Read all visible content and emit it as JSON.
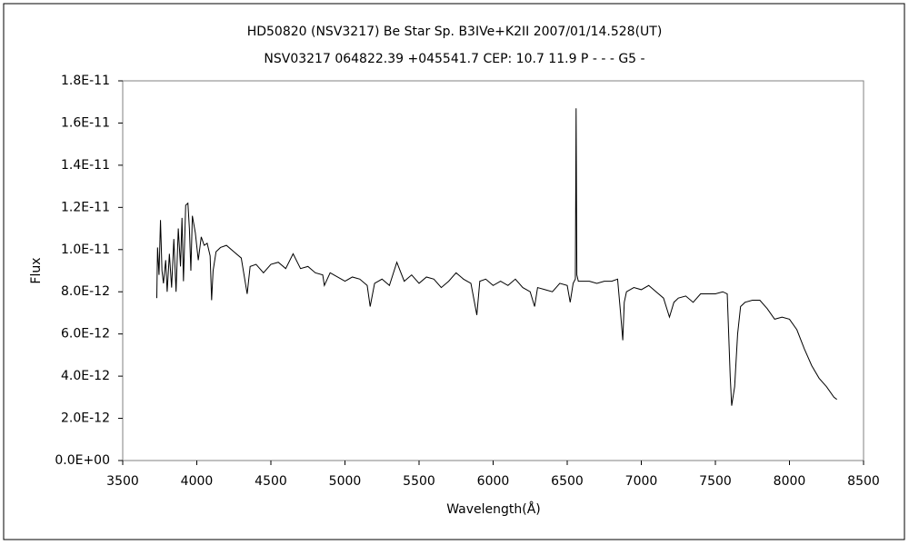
{
  "chart_data": {
    "type": "line",
    "title": "HD50820 (NSV3217)    Be Star    Sp. B3IVe+K2II    2007/01/14.528(UT)",
    "subtitle": "NSV03217 064822.39 +045541.7 CEP: 10.7 11.9  P - - - G5 -",
    "xlabel": "Wavelength(Å)",
    "ylabel": "Flux",
    "xlim": [
      3500,
      8500
    ],
    "xticks": [
      3500,
      4000,
      4500,
      5000,
      5500,
      6000,
      6500,
      7000,
      7500,
      8000,
      8500
    ],
    "ylim": [
      0,
      1.8e-11
    ],
    "yticks": [
      {
        "value": 0,
        "label": "0.0E+00"
      },
      {
        "value": 2e-12,
        "label": "2.0E-12"
      },
      {
        "value": 4e-12,
        "label": "4.0E-12"
      },
      {
        "value": 6e-12,
        "label": "6.0E-12"
      },
      {
        "value": 8e-12,
        "label": "8.0E-12"
      },
      {
        "value": 1e-11,
        "label": "1.0E-11"
      },
      {
        "value": 1.2e-11,
        "label": "1.2E-11"
      },
      {
        "value": 1.4e-11,
        "label": "1.4E-11"
      },
      {
        "value": 1.6e-11,
        "label": "1.6E-11"
      },
      {
        "value": 1.8e-11,
        "label": "1.8E-11"
      }
    ],
    "color": "#000000",
    "x": [
      3730,
      3735,
      3745,
      3755,
      3765,
      3775,
      3790,
      3800,
      3815,
      3830,
      3845,
      3860,
      3875,
      3890,
      3900,
      3910,
      3925,
      3940,
      3950,
      3960,
      3970,
      3990,
      4010,
      4030,
      4050,
      4070,
      4090,
      4100,
      4110,
      4130,
      4160,
      4200,
      4250,
      4300,
      4340,
      4360,
      4400,
      4450,
      4500,
      4550,
      4600,
      4650,
      4700,
      4750,
      4800,
      4850,
      4861,
      4900,
      4950,
      5000,
      5050,
      5100,
      5150,
      5170,
      5200,
      5250,
      5300,
      5350,
      5400,
      5450,
      5500,
      5550,
      5600,
      5650,
      5700,
      5750,
      5800,
      5850,
      5890,
      5910,
      5950,
      6000,
      6050,
      6100,
      6150,
      6200,
      6250,
      6280,
      6300,
      6350,
      6400,
      6450,
      6500,
      6520,
      6540,
      6555,
      6560,
      6565,
      6575,
      6600,
      6650,
      6700,
      6750,
      6800,
      6840,
      6860,
      6875,
      6885,
      6900,
      6950,
      7000,
      7050,
      7100,
      7150,
      7190,
      7220,
      7250,
      7300,
      7350,
      7400,
      7450,
      7500,
      7550,
      7580,
      7600,
      7610,
      7630,
      7650,
      7670,
      7700,
      7750,
      7800,
      7850,
      7900,
      7950,
      8000,
      8050,
      8100,
      8150,
      8200,
      8250,
      8300,
      8320
    ],
    "values": [
      7.7e-12,
      1.01e-11,
      8.8e-12,
      1.14e-11,
      9e-12,
      8.4e-12,
      9.5e-12,
      8e-12,
      9.8e-12,
      8.2e-12,
      1.05e-11,
      8e-12,
      1.1e-11,
      9.2e-12,
      1.15e-11,
      8.5e-12,
      1.21e-11,
      1.22e-11,
      1.1e-11,
      9e-12,
      1.16e-11,
      1.08e-11,
      9.5e-12,
      1.06e-11,
      1.02e-11,
      1.03e-11,
      9.7e-12,
      7.6e-12,
      9e-12,
      9.9e-12,
      1.01e-11,
      1.02e-11,
      9.9e-12,
      9.6e-12,
      7.9e-12,
      9.2e-12,
      9.3e-12,
      8.9e-12,
      9.3e-12,
      9.4e-12,
      9.1e-12,
      9.8e-12,
      9.1e-12,
      9.2e-12,
      8.9e-12,
      8.8e-12,
      8.3e-12,
      8.9e-12,
      8.7e-12,
      8.5e-12,
      8.7e-12,
      8.6e-12,
      8.3e-12,
      7.3e-12,
      8.4e-12,
      8.6e-12,
      8.3e-12,
      9.4e-12,
      8.5e-12,
      8.8e-12,
      8.4e-12,
      8.7e-12,
      8.6e-12,
      8.2e-12,
      8.5e-12,
      8.9e-12,
      8.6e-12,
      8.4e-12,
      6.9e-12,
      8.5e-12,
      8.6e-12,
      8.3e-12,
      8.5e-12,
      8.3e-12,
      8.6e-12,
      8.2e-12,
      8e-12,
      7.3e-12,
      8.2e-12,
      8.1e-12,
      8e-12,
      8.4e-12,
      8.3e-12,
      7.5e-12,
      8.4e-12,
      8.6e-12,
      1.67e-11,
      8.8e-12,
      8.5e-12,
      8.5e-12,
      8.5e-12,
      8.4e-12,
      8.5e-12,
      8.5e-12,
      8.6e-12,
      7e-12,
      5.7e-12,
      7.5e-12,
      8e-12,
      8.2e-12,
      8.1e-12,
      8.3e-12,
      8e-12,
      7.7e-12,
      6.8e-12,
      7.5e-12,
      7.7e-12,
      7.8e-12,
      7.5e-12,
      7.9e-12,
      7.9e-12,
      7.9e-12,
      8e-12,
      7.9e-12,
      4e-12,
      2.6e-12,
      3.5e-12,
      6e-12,
      7.3e-12,
      7.5e-12,
      7.6e-12,
      7.6e-12,
      7.2e-12,
      6.7e-12,
      6.8e-12,
      6.7e-12,
      6.2e-12,
      5.3e-12,
      4.5e-12,
      3.9e-12,
      3.5e-12,
      3e-12,
      2.9e-12
    ]
  }
}
